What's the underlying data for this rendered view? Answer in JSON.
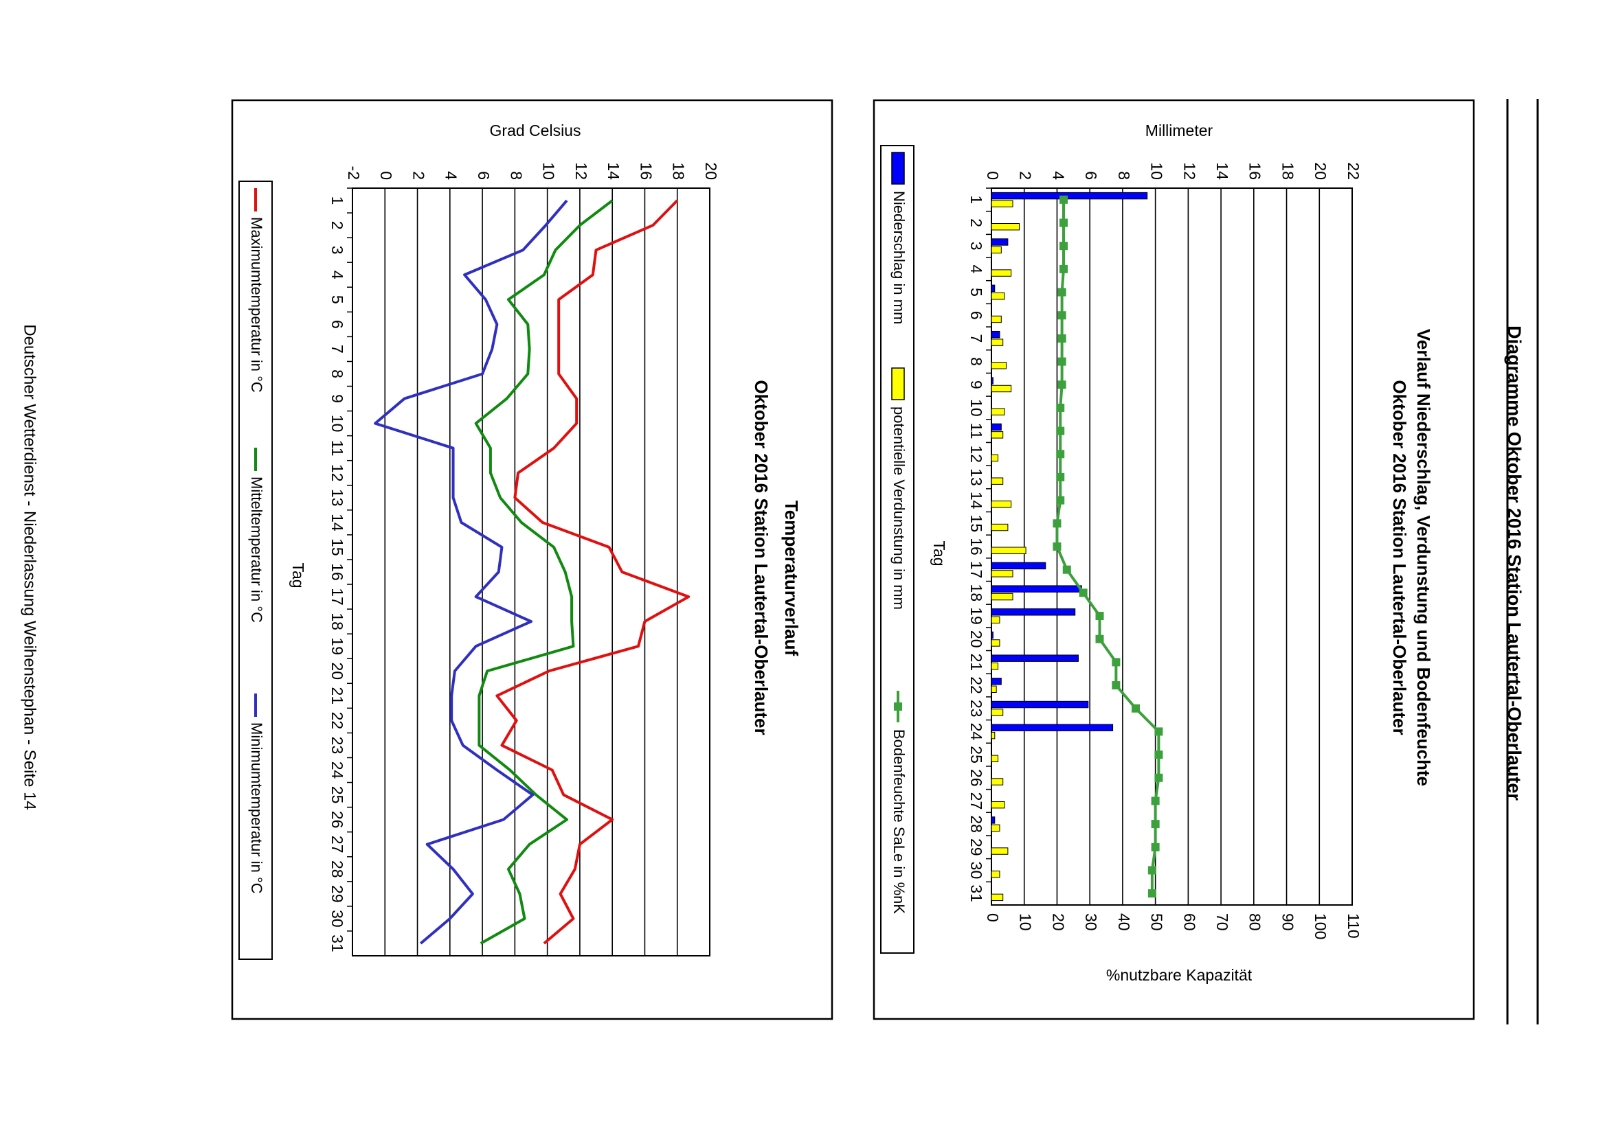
{
  "page": {
    "heading": "Diagramme Oktober 2016 Station Lautertal-Oberlauter",
    "footer": "Deutscher Wetterdienst - Niederlassung Weihenstephan - Seite 14"
  },
  "colors": {
    "precipitation": "#0000ff",
    "evaporation": "#ffff00",
    "soil_moisture": "#3ca03c",
    "max_temp": "#e01010",
    "mean_temp": "#108a10",
    "min_temp": "#3030c0"
  },
  "chart_data": [
    {
      "type": "bar",
      "title": "Verlauf Niederschlag, Verdunstung und Bodenfeuchte",
      "subtitle": "Oktober 2016 Station Lautertal-Oberlauter",
      "xlabel": "Tag",
      "ylabel": "Millimeter",
      "y2label": "%nutzbare Kapazität",
      "ylim": [
        0,
        22
      ],
      "y2lim": [
        0,
        110
      ],
      "yticks": [
        0,
        2,
        4,
        6,
        8,
        10,
        12,
        14,
        16,
        18,
        20,
        22
      ],
      "y2ticks": [
        0,
        10,
        20,
        30,
        40,
        50,
        60,
        70,
        80,
        90,
        100,
        110
      ],
      "categories": [
        "1",
        "2",
        "3",
        "4",
        "5",
        "6",
        "7",
        "8",
        "9",
        "10",
        "11",
        "12",
        "13",
        "14",
        "15",
        "16",
        "17",
        "18",
        "19",
        "20",
        "21",
        "22",
        "23",
        "24",
        "25",
        "26",
        "27",
        "28",
        "29",
        "30",
        "31"
      ],
      "grid": true,
      "legend_position": "bottom",
      "series": [
        {
          "name": "Niederschlag in mm",
          "kind": "bar",
          "axis": "left",
          "values": [
            9.5,
            0,
            1.0,
            0,
            0.2,
            0,
            0.5,
            0,
            0.1,
            0,
            0.6,
            0,
            0,
            0,
            0,
            0,
            3.3,
            5.5,
            5.1,
            0.1,
            5.3,
            0.6,
            5.9,
            7.4,
            0,
            0,
            0,
            0.2,
            0,
            0,
            0
          ]
        },
        {
          "name": "potentielle Verdunstung in mm",
          "kind": "bar",
          "axis": "left",
          "values": [
            1.3,
            1.7,
            0.6,
            1.2,
            0.8,
            0.6,
            0.7,
            0.9,
            1.2,
            0.8,
            0.7,
            0.4,
            0.7,
            1.2,
            1.0,
            2.1,
            1.3,
            1.3,
            0.5,
            0.5,
            0.4,
            0.3,
            0.7,
            0.2,
            0.4,
            0.7,
            0.8,
            0.5,
            1.0,
            0.5,
            0.7
          ]
        },
        {
          "name": "Bodenfeuchte SaLe in %nK",
          "kind": "line",
          "axis": "right",
          "values": [
            22,
            22,
            22,
            22,
            21.5,
            21.5,
            21.5,
            21.5,
            21.5,
            21,
            21,
            21,
            21,
            21,
            20,
            20,
            23,
            28,
            33,
            33,
            38,
            38,
            44,
            51,
            51,
            51,
            50,
            50,
            50,
            49,
            49
          ]
        }
      ]
    },
    {
      "type": "line",
      "title": "Temperaturverlauf",
      "subtitle": "Oktober 2016 Station Lautertal-Oberlauter",
      "xlabel": "Tag",
      "ylabel": "Grad Celsius",
      "ylim": [
        -2,
        20
      ],
      "yticks": [
        -2,
        0,
        2,
        4,
        6,
        8,
        10,
        12,
        14,
        16,
        18,
        20
      ],
      "categories": [
        "1",
        "2",
        "3",
        "4",
        "5",
        "6",
        "7",
        "8",
        "9",
        "10",
        "11",
        "12",
        "13",
        "14",
        "15",
        "16",
        "17",
        "18",
        "19",
        "20",
        "21",
        "22",
        "23",
        "24",
        "25",
        "26",
        "27",
        "28",
        "29",
        "30",
        "31"
      ],
      "grid": true,
      "legend_position": "bottom",
      "series": [
        {
          "name": "Maximumtemperatur in °C",
          "values": [
            18.0,
            16.5,
            13.0,
            12.8,
            10.7,
            10.7,
            10.7,
            10.7,
            11.8,
            11.8,
            10.4,
            8.2,
            8.0,
            9.7,
            13.8,
            14.6,
            18.7,
            16.0,
            15.6,
            10.1,
            6.9,
            8.1,
            7.2,
            10.3,
            11.0,
            14.0,
            12.0,
            11.7,
            10.8,
            11.6,
            9.8
          ]
        },
        {
          "name": "Mitteltemperatur in °C",
          "values": [
            14.0,
            12.0,
            10.5,
            9.8,
            7.6,
            8.8,
            8.9,
            8.8,
            7.5,
            5.6,
            6.5,
            6.5,
            7.1,
            8.4,
            10.4,
            11.1,
            11.5,
            11.5,
            11.6,
            6.3,
            5.8,
            5.8,
            5.8,
            7.7,
            9.3,
            11.2,
            8.9,
            7.6,
            8.3,
            8.6,
            5.9
          ]
        },
        {
          "name": "Minimumtemperatur in °C",
          "values": [
            11.2,
            9.9,
            8.5,
            4.9,
            6.2,
            6.9,
            6.6,
            6.0,
            1.2,
            -0.6,
            4.2,
            4.2,
            4.2,
            4.7,
            7.2,
            7.0,
            5.6,
            9.0,
            5.6,
            4.3,
            4.1,
            4.1,
            4.8,
            6.9,
            9.1,
            7.3,
            2.6,
            4.2,
            5.4,
            4.0,
            2.2
          ]
        }
      ]
    }
  ]
}
